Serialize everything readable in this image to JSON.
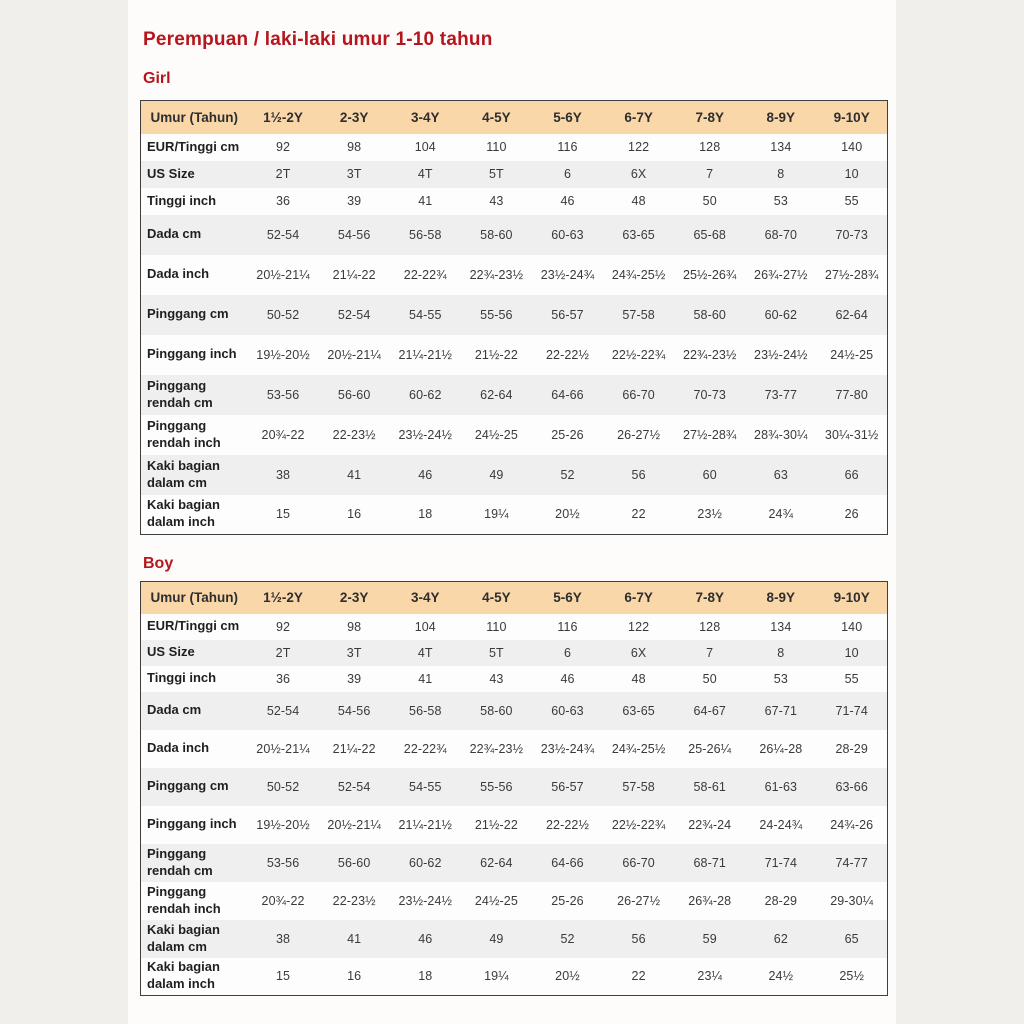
{
  "page": {
    "title": "Perempuan / laki-laki umur 1-10 tahun"
  },
  "colors": {
    "accent": "#b5161d",
    "table_header_bg": "#fad7a9",
    "row_alt_bg": "#f0efef",
    "row_bg": "#fdfdfd"
  },
  "tables": [
    {
      "section_label": "Girl",
      "header": [
        "Umur (Tahun)",
        "1½-2Y",
        "2-3Y",
        "3-4Y",
        "4-5Y",
        "5-6Y",
        "6-7Y",
        "7-8Y",
        "8-9Y",
        "9-10Y"
      ],
      "rows": [
        {
          "label": "EUR/Tinggi cm",
          "values": [
            "92",
            "98",
            "104",
            "110",
            "116",
            "122",
            "128",
            "134",
            "140"
          ]
        },
        {
          "label": "US Size",
          "values": [
            "2T",
            "3T",
            "4T",
            "5T",
            "6",
            "6X",
            "7",
            "8",
            "10"
          ]
        },
        {
          "label": "Tinggi inch",
          "values": [
            "36",
            "39",
            "41",
            "43",
            "46",
            "48",
            "50",
            "53",
            "55"
          ]
        },
        {
          "label": "Dada cm",
          "values": [
            "52-54",
            "54-56",
            "56-58",
            "58-60",
            "60-63",
            "63-65",
            "65-68",
            "68-70",
            "70-73"
          ]
        },
        {
          "label": "Dada inch",
          "values": [
            "20½-21¼",
            "21¼-22",
            "22-22¾",
            "22¾-23½",
            "23½-24¾",
            "24¾-25½",
            "25½-26¾",
            "26¾-27½",
            "27½-28¾"
          ]
        },
        {
          "label": "Pinggang cm",
          "values": [
            "50-52",
            "52-54",
            "54-55",
            "55-56",
            "56-57",
            "57-58",
            "58-60",
            "60-62",
            "62-64"
          ]
        },
        {
          "label": "Pinggang inch",
          "values": [
            "19½-20½",
            "20½-21¼",
            "21¼-21½",
            "21½-22",
            "22-22½",
            "22½-22¾",
            "22¾-23½",
            "23½-24½",
            "24½-25"
          ]
        },
        {
          "label": "Pinggang rendah cm",
          "values": [
            "53-56",
            "56-60",
            "60-62",
            "62-64",
            "64-66",
            "66-70",
            "70-73",
            "73-77",
            "77-80"
          ]
        },
        {
          "label": "Pinggang rendah inch",
          "values": [
            "20¾-22",
            "22-23½",
            "23½-24½",
            "24½-25",
            "25-26",
            "26-27½",
            "27½-28¾",
            "28¾-30¼",
            "30¼-31½"
          ]
        },
        {
          "label": "Kaki bagian dalam cm",
          "values": [
            "38",
            "41",
            "46",
            "49",
            "52",
            "56",
            "60",
            "63",
            "66"
          ]
        },
        {
          "label": "Kaki bagian dalam inch",
          "values": [
            "15",
            "16",
            "18",
            "19¼",
            "20½",
            "22",
            "23½",
            "24¾",
            "26"
          ]
        }
      ]
    },
    {
      "section_label": "Boy",
      "header": [
        "Umur (Tahun)",
        "1½-2Y",
        "2-3Y",
        "3-4Y",
        "4-5Y",
        "5-6Y",
        "6-7Y",
        "7-8Y",
        "8-9Y",
        "9-10Y"
      ],
      "rows": [
        {
          "label": "EUR/Tinggi cm",
          "values": [
            "92",
            "98",
            "104",
            "110",
            "116",
            "122",
            "128",
            "134",
            "140"
          ]
        },
        {
          "label": "US Size",
          "values": [
            "2T",
            "3T",
            "4T",
            "5T",
            "6",
            "6X",
            "7",
            "8",
            "10"
          ]
        },
        {
          "label": "Tinggi inch",
          "values": [
            "36",
            "39",
            "41",
            "43",
            "46",
            "48",
            "50",
            "53",
            "55"
          ]
        },
        {
          "label": "Dada cm",
          "values": [
            "52-54",
            "54-56",
            "56-58",
            "58-60",
            "60-63",
            "63-65",
            "64-67",
            "67-71",
            "71-74"
          ]
        },
        {
          "label": "Dada inch",
          "values": [
            "20½-21¼",
            "21¼-22",
            "22-22¾",
            "22¾-23½",
            "23½-24¾",
            "24¾-25½",
            "25-26¼",
            "26¼-28",
            "28-29"
          ]
        },
        {
          "label": "Pinggang cm",
          "values": [
            "50-52",
            "52-54",
            "54-55",
            "55-56",
            "56-57",
            "57-58",
            "58-61",
            "61-63",
            "63-66"
          ]
        },
        {
          "label": "Pinggang inch",
          "values": [
            "19½-20½",
            "20½-21¼",
            "21¼-21½",
            "21½-22",
            "22-22½",
            "22½-22¾",
            "22¾-24",
            "24-24¾",
            "24¾-26"
          ]
        },
        {
          "label": "Pinggang rendah cm",
          "values": [
            "53-56",
            "56-60",
            "60-62",
            "62-64",
            "64-66",
            "66-70",
            "68-71",
            "71-74",
            "74-77"
          ]
        },
        {
          "label": "Pinggang rendah inch",
          "values": [
            "20¾-22",
            "22-23½",
            "23½-24½",
            "24½-25",
            "25-26",
            "26-27½",
            "26¾-28",
            "28-29",
            "29-30¼"
          ]
        },
        {
          "label": "Kaki bagian dalam cm",
          "values": [
            "38",
            "41",
            "46",
            "49",
            "52",
            "56",
            "59",
            "62",
            "65"
          ]
        },
        {
          "label": "Kaki bagian dalam inch",
          "values": [
            "15",
            "16",
            "18",
            "19¼",
            "20½",
            "22",
            "23¼",
            "24½",
            "25½"
          ]
        }
      ]
    }
  ]
}
